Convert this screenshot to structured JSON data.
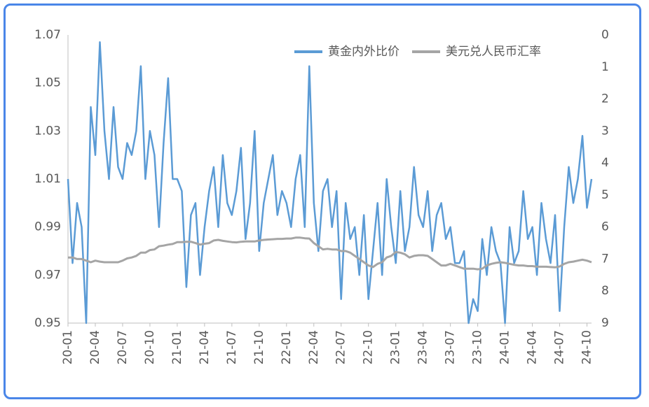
{
  "chart_data": {
    "type": "line",
    "categories": [
      "20-01",
      null,
      null,
      null,
      null,
      null,
      "20-04",
      null,
      null,
      null,
      null,
      null,
      "20-07",
      null,
      null,
      null,
      null,
      null,
      "20-10",
      null,
      null,
      null,
      null,
      null,
      "21-01",
      null,
      null,
      null,
      null,
      null,
      "21-04",
      null,
      null,
      null,
      null,
      null,
      "21-07",
      null,
      null,
      null,
      null,
      null,
      "21-10",
      null,
      null,
      null,
      null,
      null,
      "22-01",
      null,
      null,
      null,
      null,
      null,
      "22-04",
      null,
      null,
      null,
      null,
      null,
      "22-07",
      null,
      null,
      null,
      null,
      null,
      "22-10",
      null,
      null,
      null,
      null,
      null,
      "23-01",
      null,
      null,
      null,
      null,
      null,
      "23-04",
      null,
      null,
      null,
      null,
      null,
      "23-07",
      null,
      null,
      null,
      null,
      null,
      "23-10",
      null,
      null,
      null,
      null,
      null,
      "24-01",
      null,
      null,
      null,
      null,
      null,
      "24-04",
      null,
      null,
      null,
      null,
      null,
      "24-07",
      null,
      null,
      null,
      null,
      null,
      "24-10",
      null
    ],
    "series": [
      {
        "name": "黄金内外比价",
        "color": "#5b9bd5",
        "values": [
          1.01,
          0.975,
          1.0,
          0.99,
          0.95,
          1.04,
          1.02,
          1.067,
          1.03,
          1.01,
          1.04,
          1.015,
          1.01,
          1.025,
          1.02,
          1.03,
          1.057,
          1.01,
          1.03,
          1.02,
          0.99,
          1.025,
          1.052,
          1.01,
          1.01,
          1.005,
          0.965,
          0.995,
          1.0,
          0.97,
          0.99,
          1.005,
          1.015,
          0.99,
          1.02,
          1.0,
          0.995,
          1.005,
          1.023,
          0.985,
          1.0,
          1.03,
          0.98,
          1.0,
          1.01,
          1.02,
          0.995,
          1.005,
          1.0,
          0.99,
          1.01,
          1.02,
          0.99,
          1.057,
          1.0,
          0.98,
          1.005,
          1.01,
          0.99,
          1.005,
          0.96,
          1.0,
          0.985,
          0.99,
          0.97,
          0.995,
          0.96,
          0.98,
          1.0,
          0.97,
          1.01,
          0.99,
          0.975,
          1.005,
          0.98,
          0.99,
          1.015,
          0.995,
          0.99,
          1.005,
          0.98,
          0.995,
          1.0,
          0.985,
          0.99,
          0.975,
          0.975,
          0.98,
          0.95,
          0.96,
          0.955,
          0.985,
          0.97,
          0.99,
          0.98,
          0.975,
          0.95,
          0.99,
          0.975,
          0.98,
          1.005,
          0.985,
          0.99,
          0.97,
          1.0,
          0.985,
          0.975,
          0.995,
          0.955,
          0.99,
          1.015,
          1.0,
          1.01,
          1.028,
          0.998,
          1.01
        ]
      },
      {
        "name": "美元兑人民币汇率",
        "color": "#a5a5a5",
        "axis": "y2",
        "values": [
          6.95,
          6.95,
          7.0,
          7.0,
          7.05,
          7.1,
          7.05,
          7.08,
          7.1,
          7.1,
          7.1,
          7.1,
          7.05,
          6.98,
          6.95,
          6.9,
          6.8,
          6.8,
          6.72,
          6.7,
          6.6,
          6.58,
          6.55,
          6.53,
          6.47,
          6.47,
          6.46,
          6.46,
          6.5,
          6.55,
          6.52,
          6.5,
          6.42,
          6.4,
          6.43,
          6.45,
          6.47,
          6.48,
          6.46,
          6.45,
          6.45,
          6.45,
          6.42,
          6.4,
          6.39,
          6.38,
          6.37,
          6.37,
          6.36,
          6.36,
          6.33,
          6.33,
          6.35,
          6.36,
          6.5,
          6.6,
          6.7,
          6.68,
          6.7,
          6.7,
          6.75,
          6.75,
          6.8,
          6.9,
          7.0,
          7.1,
          7.2,
          7.25,
          7.15,
          7.1,
          6.95,
          6.9,
          6.78,
          6.8,
          6.85,
          6.95,
          6.9,
          6.88,
          6.88,
          6.9,
          7.0,
          7.1,
          7.2,
          7.2,
          7.15,
          7.2,
          7.25,
          7.3,
          7.3,
          7.3,
          7.32,
          7.3,
          7.2,
          7.15,
          7.12,
          7.1,
          7.12,
          7.15,
          7.18,
          7.2,
          7.2,
          7.22,
          7.22,
          7.24,
          7.24,
          7.24,
          7.25,
          7.26,
          7.23,
          7.15,
          7.1,
          7.08,
          7.05,
          7.02,
          7.05,
          7.1
        ]
      }
    ],
    "ylim": [
      0.95,
      1.07
    ],
    "yticks": [
      0.95,
      0.97,
      0.99,
      1.01,
      1.03,
      1.05,
      1.07
    ],
    "y2lim": [
      9,
      0
    ],
    "y2ticks": [
      0,
      1,
      2,
      3,
      4,
      5,
      6,
      7,
      8,
      9
    ],
    "legend": "top-right"
  }
}
